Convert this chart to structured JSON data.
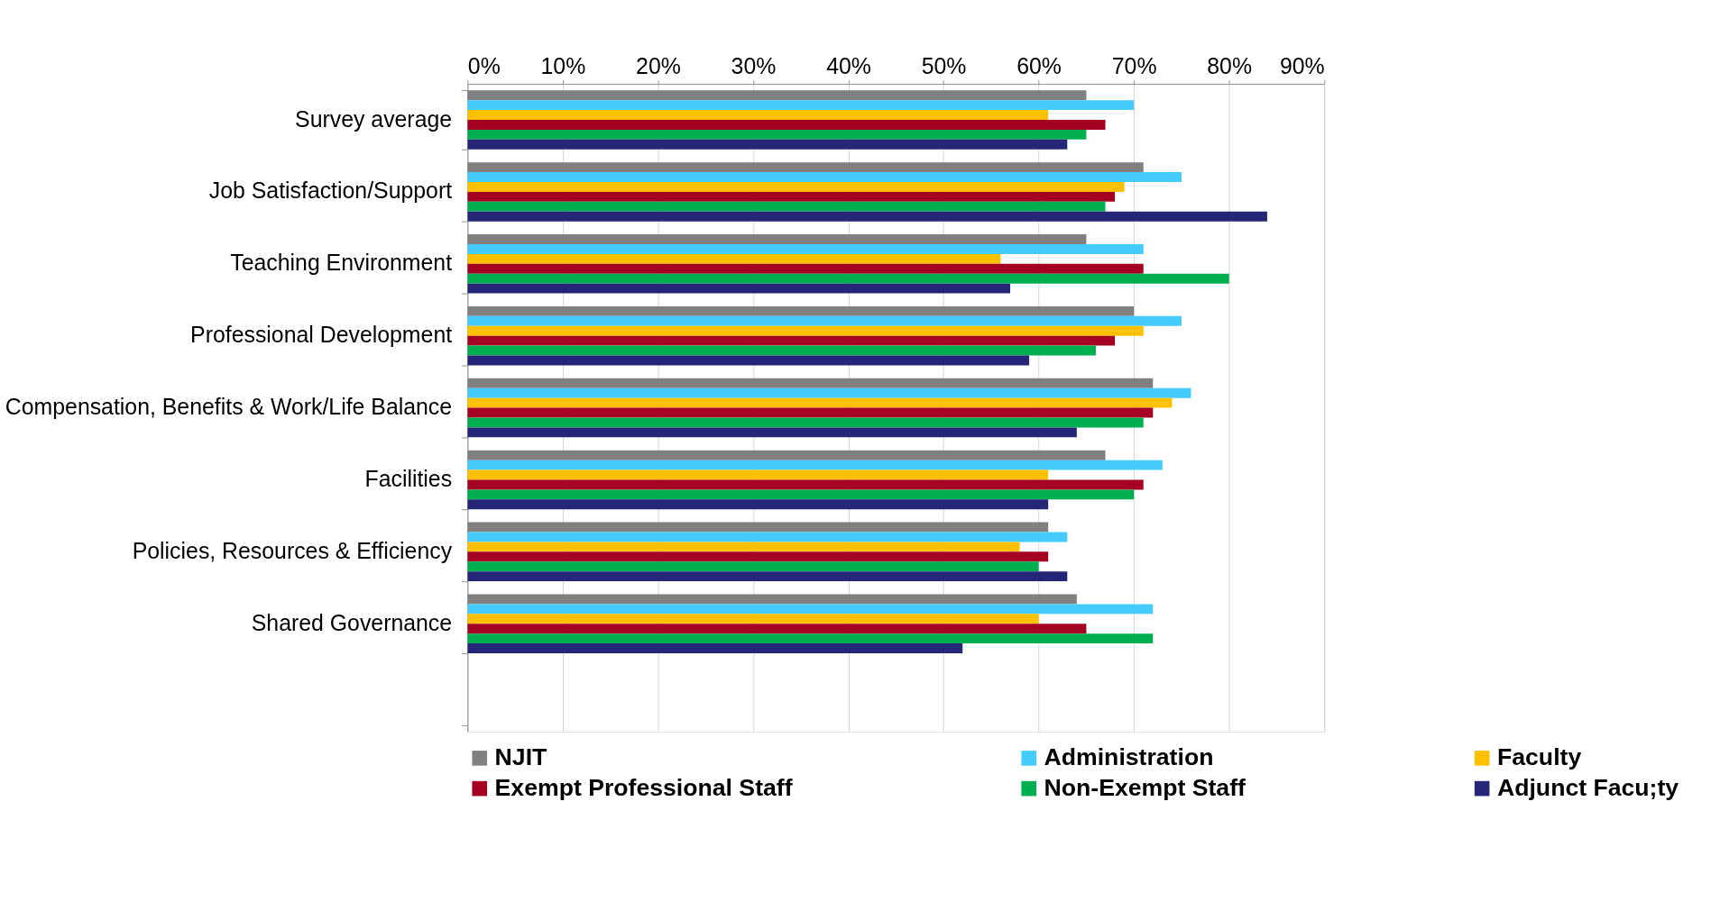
{
  "chart_data": {
    "type": "bar",
    "orientation": "horizontal",
    "categories": [
      "Survey average",
      "Job Satisfaction/Support",
      "Teaching Environment",
      "Professional Development",
      "Compensation, Benefits & Work/Life Balance",
      "Facilities",
      "Policies, Resources & Efficiency",
      "Shared Governance",
      null
    ],
    "series": [
      {
        "name": "NJIT",
        "color": "#808080",
        "values": [
          65,
          71,
          65,
          70,
          72,
          67,
          61,
          64,
          null
        ]
      },
      {
        "name": "Administration",
        "color": "#44ccff",
        "values": [
          70,
          75,
          71,
          75,
          76,
          73,
          63,
          72,
          null
        ]
      },
      {
        "name": "Faculty",
        "color": "#ffc000",
        "values": [
          61,
          69,
          56,
          71,
          74,
          61,
          58,
          60,
          null
        ]
      },
      {
        "name": "Exempt Professional Staff",
        "color": "#a50021",
        "values": [
          67,
          68,
          71,
          68,
          72,
          71,
          61,
          65,
          null
        ]
      },
      {
        "name": "Non-Exempt Staff",
        "color": "#00b050",
        "values": [
          65,
          67,
          80,
          66,
          71,
          70,
          60,
          72,
          null
        ]
      },
      {
        "name": "Adjunct Facu;ty",
        "color": "#262678",
        "values": [
          63,
          84,
          57,
          59,
          64,
          61,
          63,
          52,
          null
        ]
      }
    ],
    "xlim": [
      0,
      90
    ],
    "xticks": [
      {
        "value": 0,
        "label": "0%"
      },
      {
        "value": 10,
        "label": "10%"
      },
      {
        "value": 20,
        "label": "20%"
      },
      {
        "value": 30,
        "label": "30%"
      },
      {
        "value": 40,
        "label": "40%"
      },
      {
        "value": 50,
        "label": "50%"
      },
      {
        "value": 60,
        "label": "60%"
      },
      {
        "value": 70,
        "label": "70%"
      },
      {
        "value": 80,
        "label": "80%"
      },
      {
        "value": 90,
        "label": "90%"
      }
    ],
    "grid": "x",
    "legend": "bottom"
  }
}
